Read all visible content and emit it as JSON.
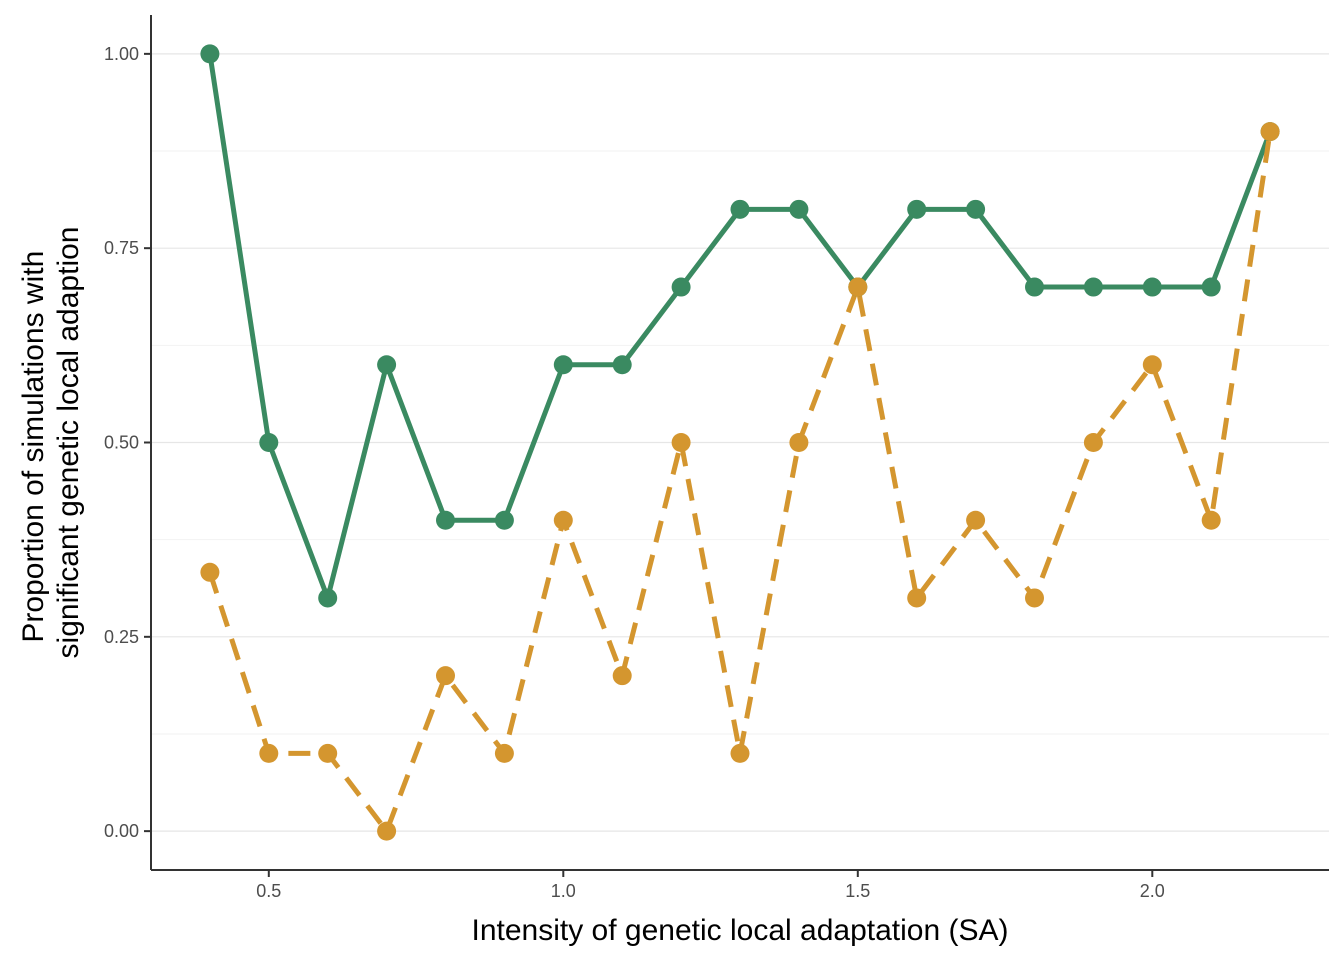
{
  "chart_data": {
    "type": "line",
    "title": "",
    "xlabel": "Intensity of genetic local adaptation (SA)",
    "ylabel_lines": [
      "Proportion of simulations with",
      "significant genetic local adaption"
    ],
    "xlim": [
      0.3,
      2.3
    ],
    "ylim": [
      -0.05,
      1.05
    ],
    "x_ticks": [
      0.5,
      1.0,
      1.5,
      2.0
    ],
    "x_tick_labels": [
      "0.5",
      "1.0",
      "1.5",
      "2.0"
    ],
    "y_ticks": [
      0,
      0.25,
      0.5,
      0.75,
      1.0
    ],
    "y_tick_labels": [
      "0.00",
      "0.25",
      "0.50",
      "0.75",
      "1.00"
    ],
    "grid": "horizontal",
    "legend": "none",
    "x": [
      0.4,
      0.5,
      0.6,
      0.7,
      0.8,
      0.9,
      1.0,
      1.1,
      1.2,
      1.3,
      1.4,
      1.5,
      1.6,
      1.7,
      1.8,
      1.9,
      2.0,
      2.1,
      2.2
    ],
    "series": [
      {
        "color": "#3a8a61",
        "line_style": "solid",
        "values": [
          1.0,
          0.5,
          0.3,
          0.6,
          0.4,
          0.4,
          0.6,
          0.6,
          0.7,
          0.8,
          0.8,
          0.7,
          0.8,
          0.8,
          0.7,
          0.7,
          0.7,
          0.7,
          0.9
        ]
      },
      {
        "color": "#d4962f",
        "line_style": "dashed",
        "values": [
          0.333,
          0.1,
          0.1,
          0.0,
          0.2,
          0.1,
          0.4,
          0.2,
          0.5,
          0.1,
          0.5,
          0.7,
          0.3,
          0.4,
          0.3,
          0.5,
          0.6,
          0.4,
          0.9
        ]
      }
    ]
  }
}
